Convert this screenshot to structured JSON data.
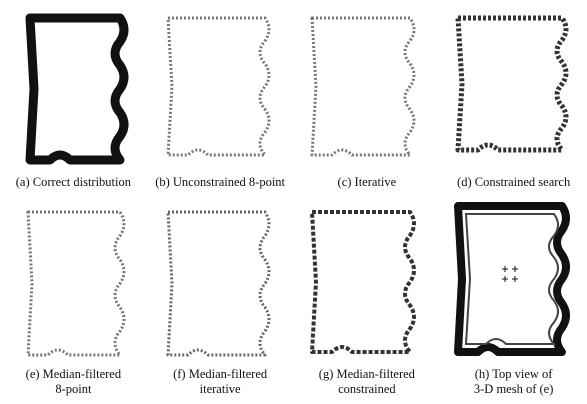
{
  "figure": {
    "panels": [
      {
        "caption": [
          "(a) Correct distribution"
        ]
      },
      {
        "caption": [
          "(b) Unconstrained 8-point"
        ]
      },
      {
        "caption": [
          "(c) Iterative"
        ]
      },
      {
        "caption": [
          "(d) Constrained search"
        ]
      },
      {
        "caption": [
          "(e) Median-filtered",
          "8-point"
        ]
      },
      {
        "caption": [
          "(f) Median-filtered",
          "iterative"
        ]
      },
      {
        "caption": [
          "(g) Median-filtered",
          "constrained"
        ]
      },
      {
        "caption": [
          "(h) Top view of",
          "3-D mesh of (e)"
        ]
      }
    ]
  }
}
